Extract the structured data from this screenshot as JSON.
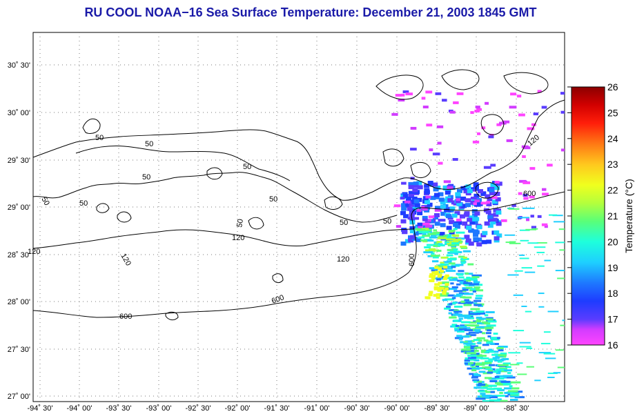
{
  "title": "RU COOL  NOAA−16  Sea Surface Temperature:  December 21, 2003 1845 GMT",
  "lat_ticks": [
    "30˚ 30'",
    "30˚ 00'",
    "29˚ 30'",
    "29˚ 00'",
    "28˚ 30'",
    "28˚ 00'",
    "27˚ 30'",
    "27˚ 00'"
  ],
  "lon_ticks": [
    "-94˚ 30'",
    "-94˚ 00'",
    "-93˚ 30'",
    "-93˚ 00'",
    "-92˚ 30'",
    "-92˚ 00'",
    "-91˚ 30'",
    "-91˚ 00'",
    "-90˚ 30'",
    "-90˚ 00'",
    "-89˚ 30'",
    "-89˚ 00'",
    "-88˚ 30'"
  ],
  "colorbar": {
    "label": "Temperature (°C)",
    "ticks": [
      "26",
      "25",
      "24",
      "23",
      "22",
      "21",
      "20",
      "19",
      "18",
      "17",
      "16"
    ]
  },
  "contour_labels": [
    {
      "text": "50"
    },
    {
      "text": "50"
    },
    {
      "text": "50"
    },
    {
      "text": "50"
    },
    {
      "text": "50"
    },
    {
      "text": "50"
    },
    {
      "text": "50"
    },
    {
      "text": "50"
    },
    {
      "text": "50"
    },
    {
      "text": "50"
    },
    {
      "text": "120"
    },
    {
      "text": "120"
    },
    {
      "text": "120"
    },
    {
      "text": "120"
    },
    {
      "text": "120"
    },
    {
      "text": "600"
    },
    {
      "text": "600"
    },
    {
      "text": "600"
    },
    {
      "text": "600"
    }
  ],
  "colors": {
    "title": "#1a1aa8",
    "cold": "#ff44ff",
    "warm": "#ff0000"
  }
}
